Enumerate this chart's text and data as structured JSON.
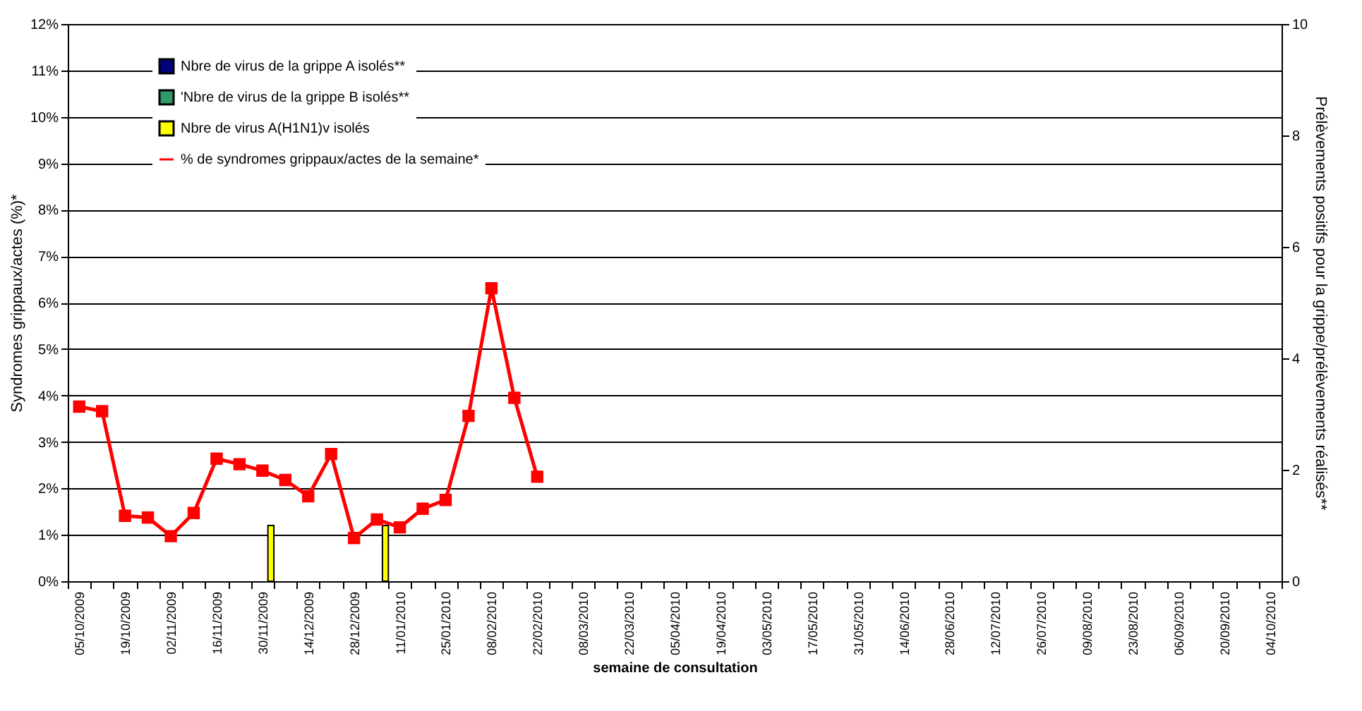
{
  "chart_data": {
    "type": "bar",
    "xlabel": "semaine de consultation",
    "ylabel": "Syndromes grippaux/actes (%)*",
    "y2label": "Prélèvements positifs pour la grippe/prélèvements réalisés**",
    "categories": [
      "05/10/2009",
      null,
      "19/10/2009",
      null,
      "02/11/2009",
      null,
      "16/11/2009",
      null,
      "30/11/2009",
      null,
      "14/12/2009",
      null,
      "28/12/2009",
      null,
      "11/01/2010",
      null,
      "25/01/2010",
      null,
      "08/02/2010",
      null,
      "22/02/2010",
      null,
      "08/03/2010",
      null,
      "22/03/2010",
      null,
      "05/04/2010",
      null,
      "19/04/2010",
      null,
      "03/05/2010",
      null,
      "17/05/2010",
      null,
      "31/05/2010",
      null,
      "14/06/2010",
      null,
      "28/06/2010",
      null,
      "12/07/2010",
      null,
      "26/07/2010",
      null,
      "09/08/2010",
      null,
      "23/08/2010",
      null,
      "06/09/2010",
      null,
      "20/09/2010",
      null,
      "04/10/2010"
    ],
    "series": [
      {
        "name": "Nbre de virus de la grippe A  isolés**",
        "color": "#000080",
        "axis": "y2",
        "values": [
          null,
          null,
          null,
          null,
          null,
          null,
          null,
          null,
          null,
          null,
          null,
          null,
          null,
          null,
          null,
          null,
          null,
          null,
          null,
          null,
          null,
          null,
          null,
          null,
          null,
          null,
          null,
          null,
          null,
          null,
          null,
          null,
          null,
          null,
          null,
          null,
          null,
          null,
          null,
          null,
          null,
          null,
          null,
          null,
          null,
          null,
          null,
          null,
          null,
          null,
          null,
          null,
          null
        ]
      },
      {
        "name": "'Nbre de virus de la grippe B isolés**",
        "color": "#339966",
        "axis": "y2",
        "values": [
          null,
          null,
          null,
          null,
          null,
          null,
          null,
          null,
          null,
          null,
          null,
          null,
          null,
          null,
          null,
          null,
          null,
          null,
          null,
          null,
          null,
          null,
          null,
          null,
          null,
          null,
          null,
          null,
          null,
          null,
          null,
          null,
          null,
          null,
          null,
          null,
          null,
          null,
          null,
          null,
          null,
          null,
          null,
          null,
          null,
          null,
          null,
          null,
          null,
          null,
          null,
          null,
          null
        ]
      },
      {
        "name": "Nbre de virus A(H1N1)v isolés",
        "color": "#ffff00",
        "axis": "y2",
        "values": [
          null,
          null,
          null,
          null,
          null,
          null,
          null,
          null,
          1,
          null,
          null,
          null,
          null,
          1,
          null,
          null,
          null,
          null,
          null,
          null,
          null,
          null,
          null,
          null,
          null,
          null,
          null,
          null,
          null,
          null,
          null,
          null,
          null,
          null,
          null,
          null,
          null,
          null,
          null,
          null,
          null,
          null,
          null,
          null,
          null,
          null,
          null,
          null,
          null,
          null,
          null,
          null,
          null
        ]
      },
      {
        "name": "% de syndromes grippaux/actes de la semaine*",
        "color": "#ff0000",
        "type": "line",
        "axis": "y",
        "marker": "square",
        "values": [
          3.76,
          3.66,
          1.41,
          1.37,
          0.97,
          1.47,
          2.64,
          2.52,
          2.38,
          2.18,
          1.83,
          2.74,
          0.93,
          1.33,
          1.16,
          1.56,
          1.75,
          3.56,
          6.31,
          3.95,
          2.25,
          null,
          null,
          null,
          null,
          null,
          null,
          null,
          null,
          null,
          null,
          null,
          null,
          null,
          null,
          null,
          null,
          null,
          null,
          null,
          null,
          null,
          null,
          null,
          null,
          null,
          null,
          null,
          null,
          null,
          null,
          null,
          null
        ]
      }
    ],
    "ylim": [
      0,
      12
    ],
    "yticks": [
      {
        "value": 0,
        "label": "0%"
      },
      {
        "value": 1,
        "label": "1%"
      },
      {
        "value": 2,
        "label": "2%"
      },
      {
        "value": 3,
        "label": "3%"
      },
      {
        "value": 4,
        "label": "4%"
      },
      {
        "value": 5,
        "label": "5%"
      },
      {
        "value": 6,
        "label": "6%"
      },
      {
        "value": 7,
        "label": "7%"
      },
      {
        "value": 8,
        "label": "8%"
      },
      {
        "value": 9,
        "label": "9%"
      },
      {
        "value": 10,
        "label": "10%"
      },
      {
        "value": 11,
        "label": "11%"
      },
      {
        "value": 12,
        "label": "12%"
      }
    ],
    "y2lim": [
      0,
      10
    ],
    "y2ticks": [
      0,
      2,
      4,
      6,
      8,
      10
    ],
    "grid": "y",
    "legend": "top left"
  }
}
